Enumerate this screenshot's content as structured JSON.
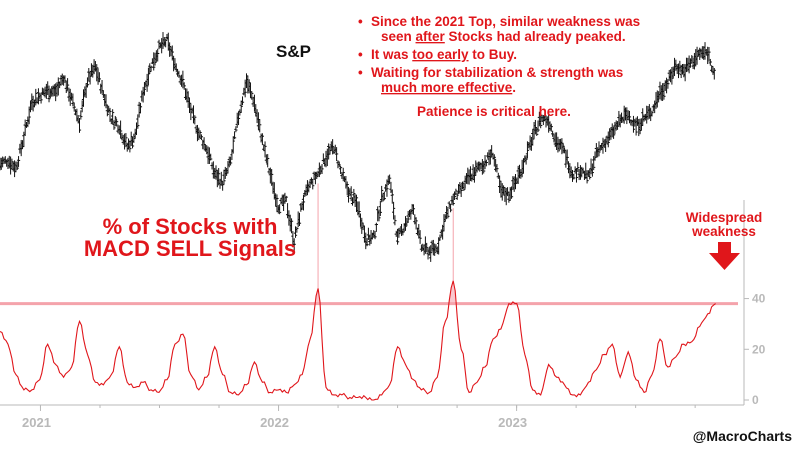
{
  "chart_data": {
    "type": "line",
    "title": "S&P",
    "series": [
      {
        "name": "S&P",
        "style": "ohlc-bars",
        "color": "#111111",
        "x_start": 2020.83,
        "x_step": 0.0334,
        "values": [
          4040,
          4060,
          4020,
          4180,
          4370,
          4400,
          4430,
          4420,
          4500,
          4380,
          4260,
          4480,
          4550,
          4410,
          4280,
          4240,
          4130,
          4190,
          4420,
          4560,
          4650,
          4690,
          4570,
          4470,
          4320,
          4200,
          4120,
          3990,
          3940,
          4050,
          4290,
          4480,
          4360,
          4160,
          3980,
          3820,
          3840,
          3630,
          3830,
          3930,
          3990,
          4080,
          4130,
          3980,
          3880,
          3820,
          3650,
          3650,
          3860,
          3960,
          3640,
          3730,
          3800,
          3600,
          3580,
          3600,
          3750,
          3860,
          3900,
          3970,
          4010,
          4050,
          4100,
          3890,
          3880,
          3960,
          4060,
          4180,
          4280,
          4270,
          4160,
          4100,
          3990,
          4010,
          3970,
          4090,
          4150,
          4200,
          4270,
          4300,
          4240,
          4280,
          4320,
          4420,
          4470,
          4560,
          4530,
          4580,
          4620,
          4630,
          4500
        ]
      },
      {
        "name": "% of Stocks with MACD SELL Signals",
        "color": "#e0161b",
        "x_start": 2020.83,
        "x_step": 0.0334,
        "values": [
          27,
          22,
          10,
          4,
          4,
          8,
          22,
          14,
          9,
          13,
          31,
          18,
          7,
          6,
          10,
          21,
          7,
          5,
          7,
          4,
          3,
          8,
          22,
          26,
          10,
          4,
          9,
          21,
          10,
          3,
          2,
          6,
          15,
          7,
          3,
          4,
          3,
          6,
          10,
          24,
          44,
          5,
          2,
          2,
          1,
          1,
          1,
          0,
          2,
          6,
          21,
          14,
          8,
          4,
          3,
          9,
          31,
          47,
          20,
          3,
          7,
          13,
          24,
          28,
          38,
          38,
          18,
          4,
          2,
          14,
          9,
          6,
          2,
          2,
          7,
          12,
          18,
          22,
          9,
          19,
          8,
          3,
          10,
          24,
          13,
          17,
          22,
          23,
          29,
          34,
          38
        ]
      }
    ],
    "x_ticks": [
      "2021",
      "2022",
      "2023"
    ],
    "x_tick_values": [
      2021,
      2022,
      2023
    ],
    "xlim": [
      2020.83,
      2023.93
    ],
    "y_ticks": [
      "40",
      "20",
      "0"
    ],
    "y_tick_values": [
      40,
      20,
      0
    ],
    "ylim_indicator": [
      0,
      56
    ],
    "ylim_price": [
      3560,
      4720
    ],
    "threshold": {
      "value": 38,
      "color": "#f4a3ab"
    },
    "highlight_fill": "#f7b4bd",
    "grid": false,
    "labels": {
      "sp": "S&P",
      "indicator_line1": "% of Stocks with",
      "indicator_line2": "MACD SELL Signals",
      "widespread_line1": "Widespread",
      "widespread_line2": "weakness",
      "patience": "Patience is critical here.",
      "credit": "@MacroCharts"
    },
    "bullets": [
      {
        "bullet": "•",
        "line1": "Since the 2021 Top, similar weakness was",
        "line2_pre": "seen ",
        "line2_em": "after",
        "line2_post": " Stocks had already peaked."
      },
      {
        "bullet": "•",
        "line1_pre": "It was ",
        "line1_em": "too early",
        "line1_post": " to Buy."
      },
      {
        "bullet": "•",
        "line1": "Waiting for stabilization & strength was",
        "line2_em": "much more effective",
        "line2_post": "."
      }
    ],
    "colors": {
      "red": "#e0161b",
      "black": "#111111",
      "axis": "#b9b9b9"
    }
  }
}
